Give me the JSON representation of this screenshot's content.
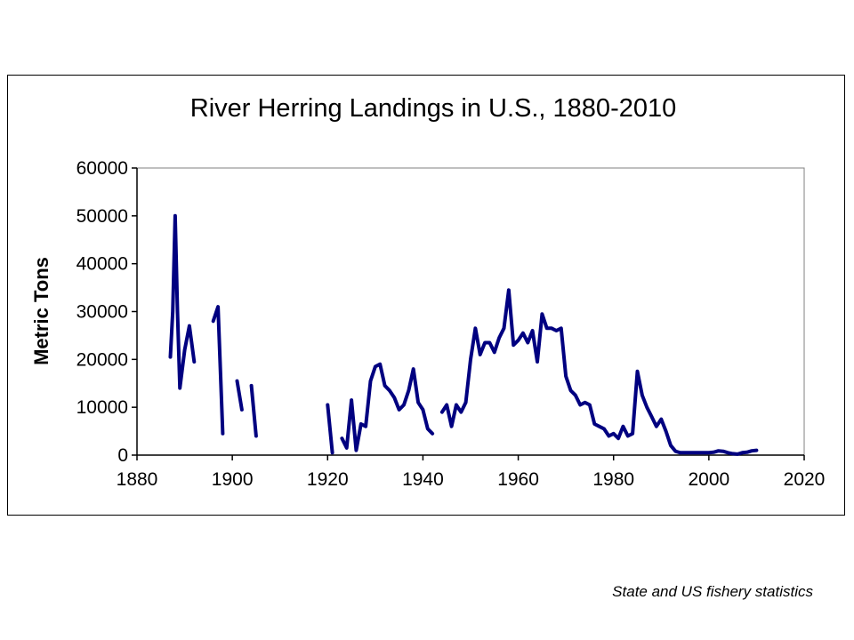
{
  "chart_data": {
    "type": "line",
    "title": "River Herring Landings in U.S., 1880-2010",
    "xlabel": "",
    "ylabel": "Metric Tons",
    "xlim": [
      1880,
      2020
    ],
    "ylim": [
      0,
      60000
    ],
    "x_ticks": [
      1880,
      1900,
      1920,
      1940,
      1960,
      1980,
      2000,
      2020
    ],
    "y_ticks": [
      0,
      10000,
      20000,
      30000,
      40000,
      50000,
      60000
    ],
    "grid": false,
    "legend": "none",
    "line_color": "#000080",
    "series": [
      {
        "segments": [
          [
            [
              1887,
              20500
            ],
            [
              1887.5,
              30000
            ],
            [
              1888,
              50000
            ],
            [
              1888.5,
              30000
            ],
            [
              1889,
              14000
            ],
            [
              1890,
              22000
            ],
            [
              1891,
              27000
            ],
            [
              1892,
              19500
            ]
          ],
          [
            [
              1896,
              28000
            ],
            [
              1897,
              31000
            ],
            [
              1898,
              4500
            ]
          ],
          [
            [
              1901,
              15500
            ],
            [
              1902,
              9500
            ]
          ],
          [
            [
              1904,
              14500
            ],
            [
              1905,
              4000
            ]
          ],
          [
            [
              1920,
              10500
            ],
            [
              1921,
              500
            ]
          ],
          [
            [
              1923,
              3500
            ],
            [
              1924,
              1500
            ],
            [
              1925,
              11500
            ],
            [
              1926,
              1000
            ],
            [
              1927,
              6500
            ],
            [
              1928,
              6000
            ],
            [
              1929,
              15500
            ],
            [
              1930,
              18500
            ],
            [
              1931,
              19000
            ],
            [
              1932,
              14500
            ],
            [
              1933,
              13500
            ],
            [
              1934,
              12000
            ],
            [
              1935,
              9500
            ],
            [
              1936,
              10500
            ],
            [
              1937,
              13500
            ],
            [
              1938,
              18000
            ],
            [
              1939,
              11000
            ],
            [
              1940,
              9500
            ],
            [
              1941,
              5500
            ],
            [
              1942,
              4500
            ]
          ],
          [
            [
              1944,
              9000
            ],
            [
              1945,
              10500
            ],
            [
              1946,
              6000
            ],
            [
              1947,
              10500
            ],
            [
              1948,
              9000
            ],
            [
              1949,
              11000
            ],
            [
              1950,
              20000
            ],
            [
              1951,
              26500
            ],
            [
              1952,
              21000
            ],
            [
              1953,
              23500
            ],
            [
              1954,
              23500
            ],
            [
              1955,
              21500
            ],
            [
              1956,
              24500
            ],
            [
              1957,
              26500
            ],
            [
              1958,
              34500
            ],
            [
              1959,
              23000
            ],
            [
              1960,
              24000
            ],
            [
              1961,
              25500
            ],
            [
              1962,
              23500
            ],
            [
              1963,
              26000
            ],
            [
              1964,
              19500
            ],
            [
              1965,
              29500
            ],
            [
              1966,
              26500
            ],
            [
              1967,
              26500
            ],
            [
              1968,
              26000
            ],
            [
              1969,
              26500
            ],
            [
              1970,
              16500
            ],
            [
              1971,
              13500
            ],
            [
              1972,
              12500
            ],
            [
              1973,
              10500
            ],
            [
              1974,
              11000
            ],
            [
              1975,
              10500
            ],
            [
              1976,
              6500
            ],
            [
              1977,
              6000
            ],
            [
              1978,
              5500
            ],
            [
              1979,
              4000
            ],
            [
              1980,
              4500
            ],
            [
              1981,
              3500
            ],
            [
              1982,
              6000
            ],
            [
              1983,
              4000
            ],
            [
              1984,
              4500
            ],
            [
              1985,
              17500
            ],
            [
              1986,
              12500
            ],
            [
              1987,
              10000
            ],
            [
              1988,
              8000
            ],
            [
              1989,
              6000
            ],
            [
              1990,
              7500
            ],
            [
              1991,
              5000
            ],
            [
              1992,
              2000
            ],
            [
              1993,
              800
            ],
            [
              1994,
              500
            ],
            [
              1995,
              500
            ],
            [
              1996,
              500
            ],
            [
              1997,
              500
            ],
            [
              1998,
              500
            ],
            [
              1999,
              500
            ],
            [
              2000,
              500
            ],
            [
              2001,
              600
            ],
            [
              2002,
              900
            ],
            [
              2003,
              800
            ],
            [
              2004,
              500
            ],
            [
              2005,
              300
            ],
            [
              2006,
              200
            ],
            [
              2007,
              500
            ],
            [
              2008,
              600
            ],
            [
              2009,
              900
            ],
            [
              2010,
              1000
            ]
          ]
        ]
      }
    ]
  },
  "source_note": "State and US fishery statistics"
}
